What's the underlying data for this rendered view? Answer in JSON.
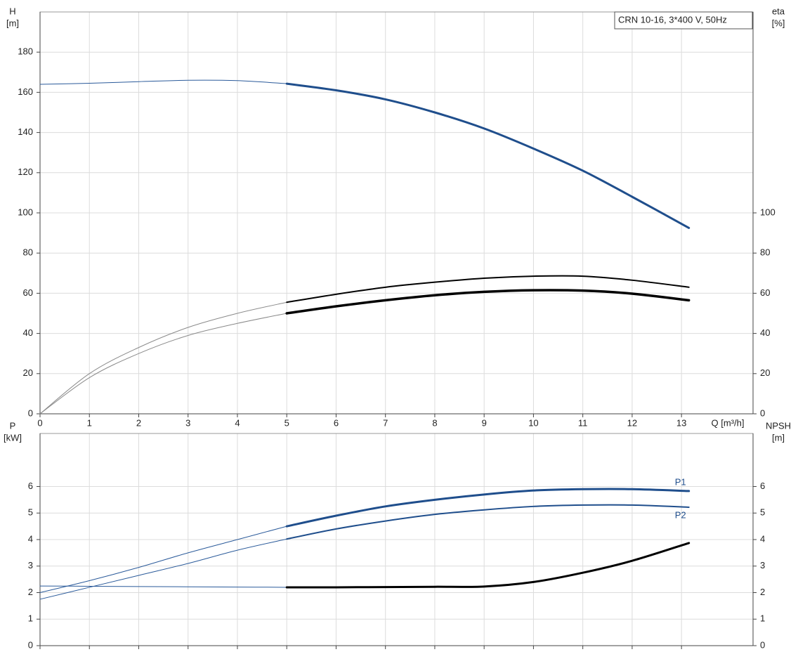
{
  "chart_data": [
    {
      "type": "line",
      "title": "CRN 10-16, 3*400 V, 50Hz",
      "ylabel": [
        "H",
        "[m]"
      ],
      "y2label": [
        "eta",
        "[%]"
      ],
      "xlabel": "Q [m³/h]",
      "x": [
        0,
        1,
        2,
        3,
        4,
        5,
        6,
        7,
        8,
        9,
        10,
        11,
        12,
        13.15
      ],
      "xlim": [
        0,
        14.45
      ],
      "xticks": [
        0,
        1,
        2,
        3,
        4,
        5,
        6,
        7,
        8,
        9,
        10,
        11,
        12,
        13
      ],
      "show_xtick_labels": true,
      "ylim": [
        0,
        200
      ],
      "yticks": [
        0,
        20,
        40,
        60,
        80,
        100,
        120,
        140,
        160,
        180
      ],
      "y2lim": [
        0,
        200
      ],
      "y2ticks": [
        0,
        20,
        40,
        60,
        80,
        100
      ],
      "grid": true,
      "series": [
        {
          "color": "#2a5a9a",
          "width": 1,
          "values": [
            164,
            164.5,
            165.3,
            166,
            165.8,
            164.3,
            null,
            null,
            null,
            null,
            null,
            null,
            null,
            null
          ]
        },
        {
          "color": "#1f4e8c",
          "width": 3,
          "values": [
            null,
            null,
            null,
            null,
            null,
            164.3,
            161,
            156.5,
            150,
            142,
            132,
            121,
            108,
            92.5
          ]
        },
        {
          "color": "#8a8a8a",
          "width": 1,
          "axis": "y2",
          "values": [
            0,
            20,
            33,
            43,
            50,
            55.5,
            null,
            null,
            null,
            null,
            null,
            null,
            null,
            null
          ]
        },
        {
          "color": "#000000",
          "width": 2,
          "axis": "y2",
          "values": [
            null,
            null,
            null,
            null,
            null,
            55.5,
            59.5,
            63,
            65.5,
            67.5,
            68.5,
            68.5,
            66.5,
            63
          ]
        },
        {
          "color": "#8a8a8a",
          "width": 1,
          "axis": "y2",
          "values": [
            0,
            18,
            30,
            39,
            45,
            50,
            null,
            null,
            null,
            null,
            null,
            null,
            null,
            null
          ]
        },
        {
          "color": "#000000",
          "width": 3.5,
          "axis": "y2",
          "values": [
            null,
            null,
            null,
            null,
            null,
            50,
            53.5,
            56.5,
            59,
            60.7,
            61.5,
            61.3,
            59.8,
            56.5
          ]
        }
      ]
    },
    {
      "type": "line",
      "ylabel": [
        "P",
        "[kW]"
      ],
      "y2label": [
        "NPSH",
        "[m]"
      ],
      "x": [
        0,
        1,
        2,
        3,
        4,
        5,
        6,
        7,
        8,
        9,
        10,
        11,
        12,
        13.15
      ],
      "xlim": [
        0,
        14.45
      ],
      "xticks": [
        0,
        1,
        2,
        3,
        4,
        5,
        6,
        7,
        8,
        9,
        10,
        11,
        12,
        13
      ],
      "show_xtick_labels": false,
      "ylim": [
        0,
        8
      ],
      "yticks": [
        0,
        1,
        2,
        3,
        4,
        5,
        6
      ],
      "y2lim": [
        0,
        8
      ],
      "y2ticks": [
        0,
        1,
        2,
        3,
        4,
        5,
        6
      ],
      "grid": true,
      "series": [
        {
          "color": "#2a5a9a",
          "width": 1,
          "values": [
            2.0,
            2.45,
            2.95,
            3.5,
            4.0,
            4.5,
            null,
            null,
            null,
            null,
            null,
            null,
            null,
            null
          ]
        },
        {
          "name": "P1",
          "label_position": "above",
          "color": "#1f4e8c",
          "width": 3,
          "values": [
            null,
            null,
            null,
            null,
            null,
            4.5,
            4.9,
            5.25,
            5.5,
            5.7,
            5.85,
            5.9,
            5.9,
            5.83
          ]
        },
        {
          "color": "#2a5a9a",
          "width": 1,
          "values": [
            1.75,
            2.2,
            2.65,
            3.1,
            3.6,
            4.02,
            null,
            null,
            null,
            null,
            null,
            null,
            null,
            null
          ]
        },
        {
          "name": "P2",
          "label_position": "below",
          "color": "#1f4e8c",
          "width": 2,
          "values": [
            null,
            null,
            null,
            null,
            null,
            4.02,
            4.4,
            4.7,
            4.95,
            5.12,
            5.25,
            5.3,
            5.3,
            5.22
          ]
        },
        {
          "color": "#2a5a9a",
          "width": 1,
          "axis": "y2",
          "values": [
            2.25,
            2.24,
            2.23,
            2.22,
            2.21,
            2.2,
            null,
            null,
            null,
            null,
            null,
            null,
            null,
            null
          ]
        },
        {
          "color": "#000000",
          "width": 3,
          "axis": "y2",
          "values": [
            null,
            null,
            null,
            null,
            null,
            2.2,
            2.2,
            2.21,
            2.22,
            2.23,
            2.4,
            2.75,
            3.2,
            3.87
          ]
        }
      ]
    }
  ]
}
